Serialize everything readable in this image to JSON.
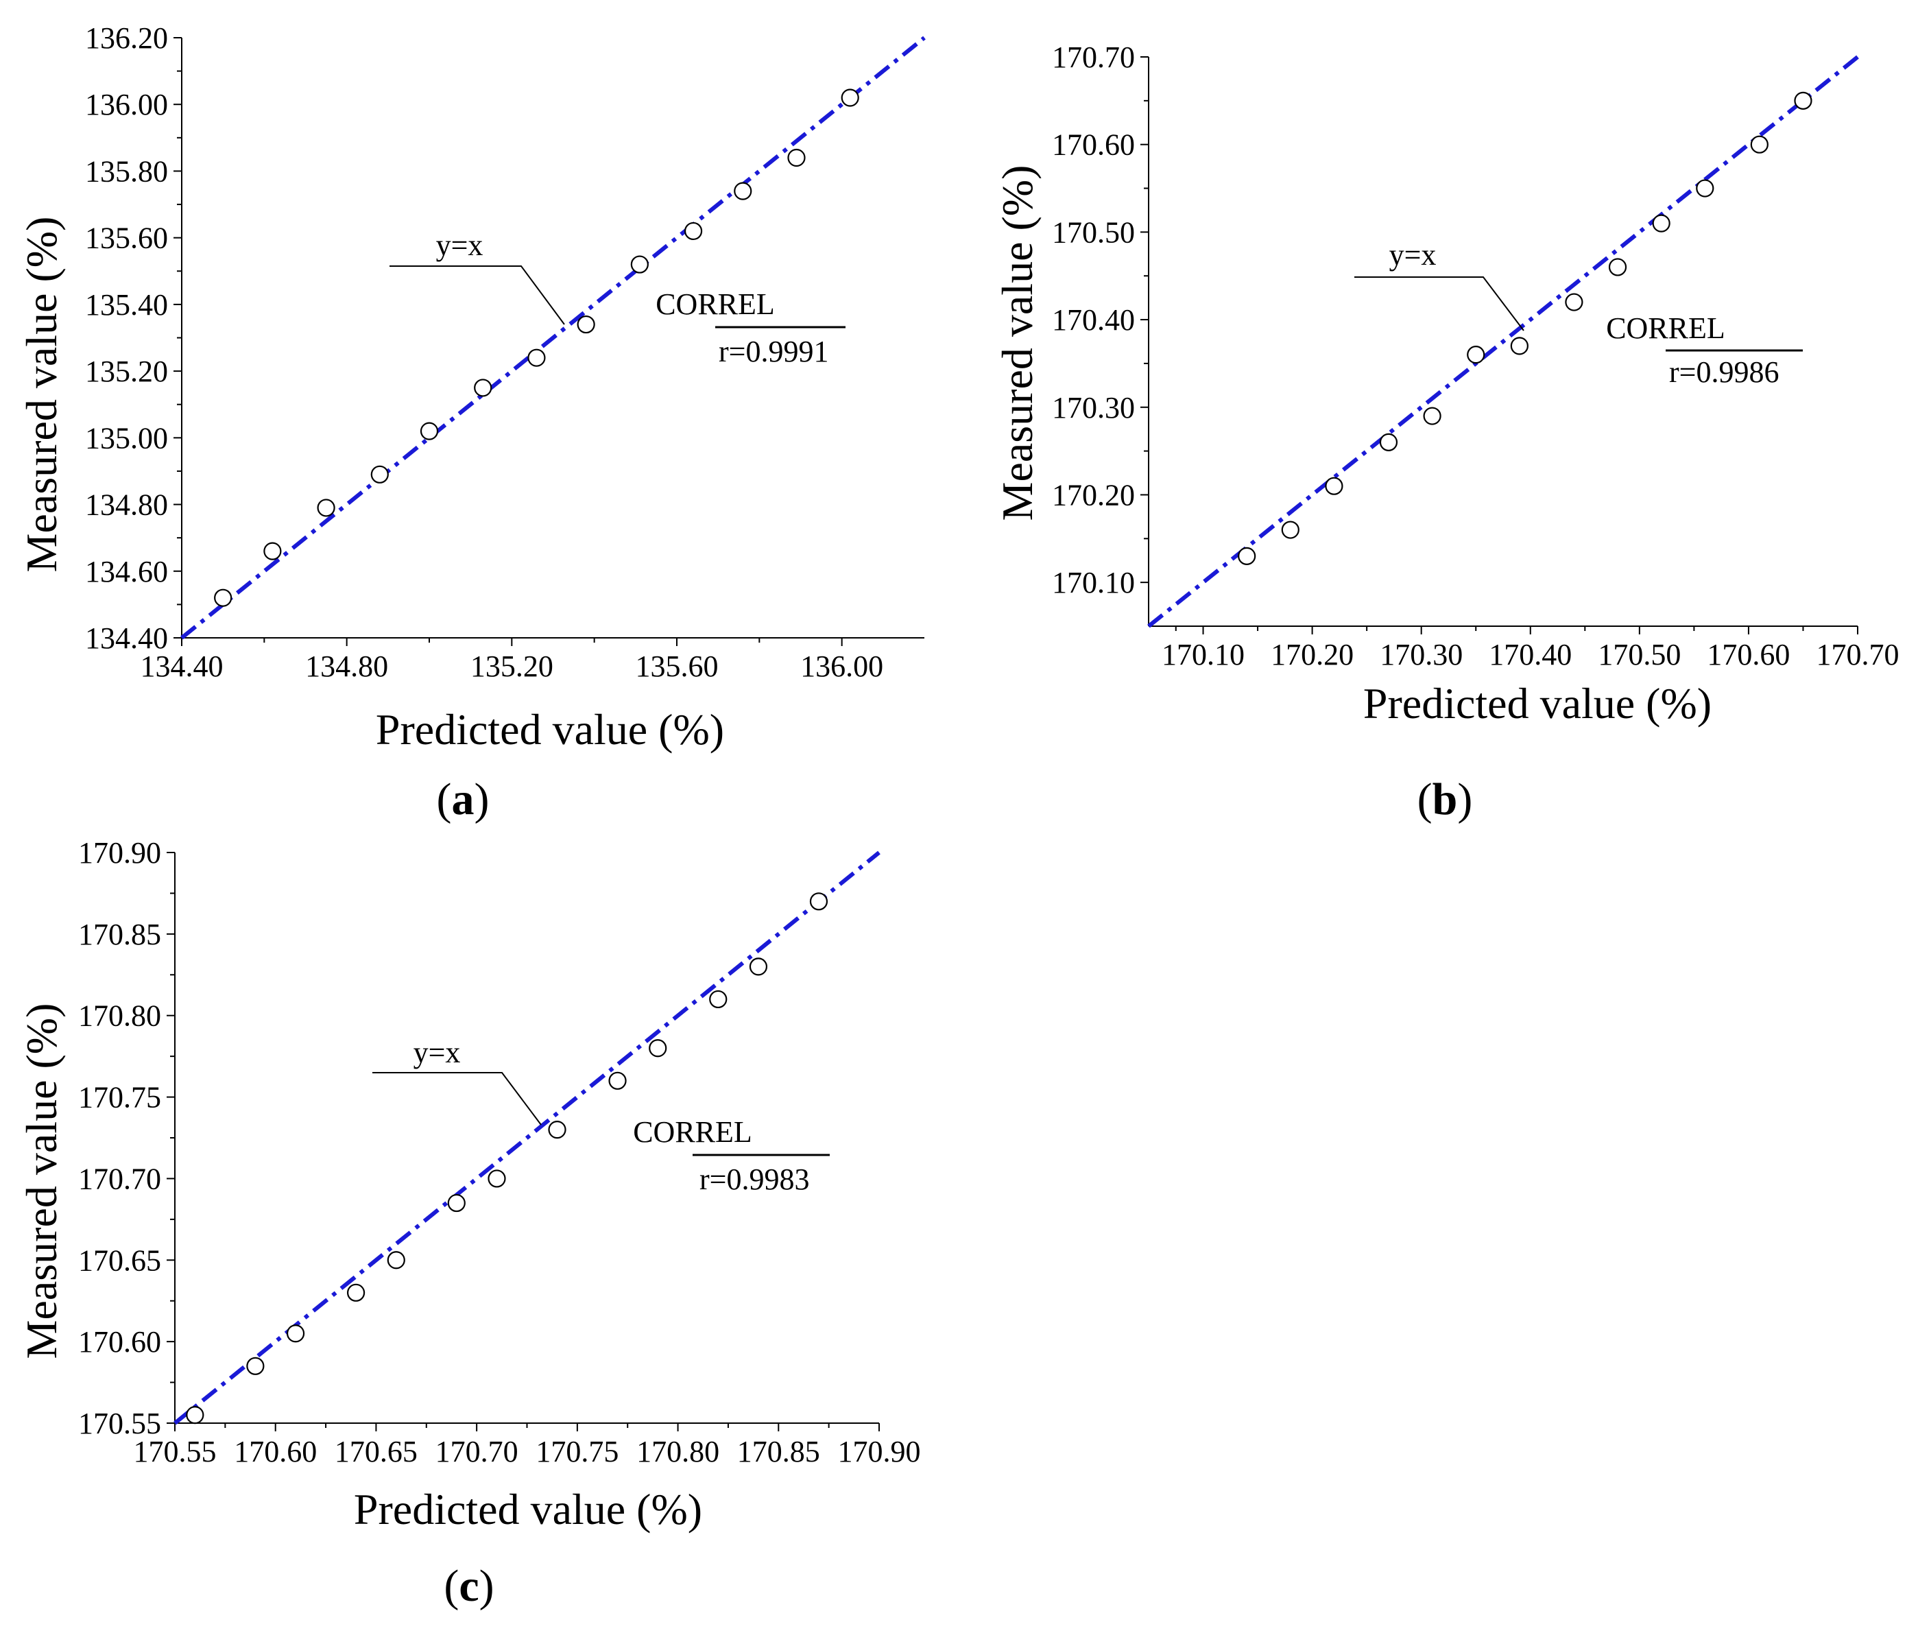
{
  "figure": {
    "panels": [
      {
        "id": "a",
        "label_open": "(",
        "label_letter": "a",
        "label_close": ")"
      },
      {
        "id": "b",
        "label_open": "(",
        "label_letter": "b",
        "label_close": ")"
      },
      {
        "id": "c",
        "label_open": "(",
        "label_letter": "c",
        "label_close": ")"
      }
    ]
  },
  "colors": {
    "fit_line": "#1a1ad6",
    "axis": "#000000",
    "marker_stroke": "#000000",
    "marker_fill": "#ffffff"
  },
  "chart_data": [
    {
      "id": "a",
      "type": "scatter",
      "xlabel": "Predicted value (%)",
      "ylabel": "Measured value (%)",
      "xlim": [
        134.4,
        136.2
      ],
      "ylim": [
        134.4,
        136.2
      ],
      "xticks": [
        134.4,
        134.8,
        135.2,
        135.6,
        136.0
      ],
      "xtick_labels": [
        "134.40",
        "134.80",
        "135.20",
        "135.60",
        "136.00"
      ],
      "yticks": [
        134.4,
        134.6,
        134.8,
        135.0,
        135.2,
        135.4,
        135.6,
        135.8,
        136.0,
        136.2
      ],
      "ytick_labels": [
        "134.40",
        "134.60",
        "134.80",
        "135.00",
        "135.20",
        "135.40",
        "135.60",
        "135.80",
        "136.00",
        "136.20"
      ],
      "reference_line": {
        "label": "y=x",
        "style": "dash-dot"
      },
      "correl_title": "CORREL",
      "correl_value": "r=0.9991",
      "points": {
        "x": [
          134.5,
          134.62,
          134.75,
          134.88,
          135.0,
          135.13,
          135.26,
          135.38,
          135.51,
          135.64,
          135.76,
          135.89,
          136.02
        ],
        "y": [
          134.52,
          134.66,
          134.79,
          134.89,
          135.02,
          135.15,
          135.24,
          135.34,
          135.52,
          135.62,
          135.74,
          135.84,
          136.02
        ]
      }
    },
    {
      "id": "b",
      "type": "scatter",
      "xlabel": "Predicted value (%)",
      "ylabel": "Measured value (%)",
      "xlim": [
        170.05,
        170.7
      ],
      "ylim": [
        170.05,
        170.7
      ],
      "xticks": [
        170.1,
        170.2,
        170.3,
        170.4,
        170.5,
        170.6,
        170.7
      ],
      "xtick_labels": [
        "170.10",
        "170.20",
        "170.30",
        "170.40",
        "170.50",
        "170.60",
        "170.70"
      ],
      "yticks": [
        170.1,
        170.2,
        170.3,
        170.4,
        170.5,
        170.6,
        170.7
      ],
      "ytick_labels": [
        "170.10",
        "170.20",
        "170.30",
        "170.40",
        "170.50",
        "170.60",
        "170.70"
      ],
      "reference_line": {
        "label": "y=x",
        "style": "dash-dot"
      },
      "correl_title": "CORREL",
      "correl_value": "r=0.9986",
      "points": {
        "x": [
          170.14,
          170.18,
          170.22,
          170.27,
          170.31,
          170.35,
          170.39,
          170.44,
          170.48,
          170.52,
          170.56,
          170.61,
          170.65
        ],
        "y": [
          170.13,
          170.16,
          170.21,
          170.26,
          170.29,
          170.36,
          170.37,
          170.42,
          170.46,
          170.51,
          170.55,
          170.6,
          170.65
        ]
      }
    },
    {
      "id": "c",
      "type": "scatter",
      "xlabel": "Predicted value (%)",
      "ylabel": "Measured value (%)",
      "xlim": [
        170.55,
        170.9
      ],
      "ylim": [
        170.55,
        170.9
      ],
      "xticks": [
        170.55,
        170.6,
        170.65,
        170.7,
        170.75,
        170.8,
        170.85,
        170.9
      ],
      "xtick_labels": [
        "170.55",
        "170.60",
        "170.65",
        "170.70",
        "170.75",
        "170.80",
        "170.85",
        "170.90"
      ],
      "yticks": [
        170.55,
        170.6,
        170.65,
        170.7,
        170.75,
        170.8,
        170.85,
        170.9
      ],
      "ytick_labels": [
        "170.55",
        "170.60",
        "170.65",
        "170.70",
        "170.75",
        "170.80",
        "170.85",
        "170.90"
      ],
      "reference_line": {
        "label": "y=x",
        "style": "dash-dot"
      },
      "correl_title": "CORREL",
      "correl_value": "r=0.9983",
      "points": {
        "x": [
          170.56,
          170.59,
          170.61,
          170.64,
          170.66,
          170.69,
          170.71,
          170.74,
          170.77,
          170.79,
          170.82,
          170.84,
          170.87
        ],
        "y": [
          170.555,
          170.585,
          170.605,
          170.63,
          170.65,
          170.685,
          170.7,
          170.73,
          170.76,
          170.78,
          170.81,
          170.83,
          170.87
        ]
      }
    }
  ]
}
